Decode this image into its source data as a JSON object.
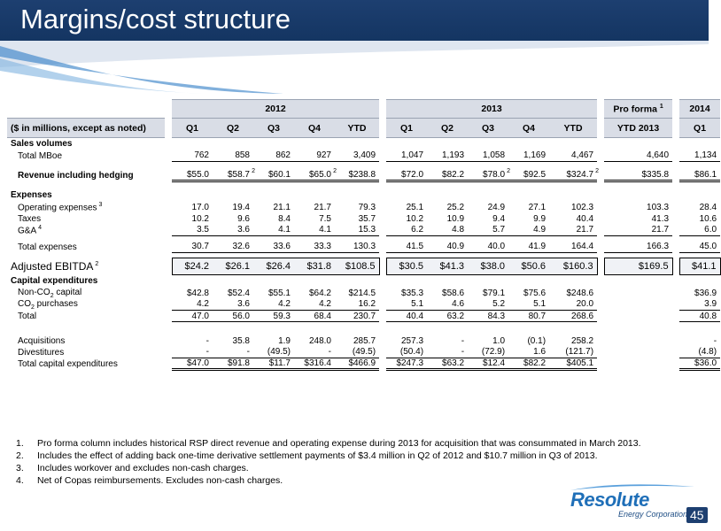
{
  "title": "Margins/cost structure",
  "headers": {
    "y2012": "2012",
    "y2013": "2013",
    "proforma": "Pro forma",
    "proforma_sup": "1",
    "y2014": "2014",
    "label": "($ in millions, except as noted)",
    "q1": "Q1",
    "q2": "Q2",
    "q3": "Q3",
    "q4": "Q4",
    "ytd": "YTD",
    "ytd2013": "YTD 2013"
  },
  "rows": {
    "sales_volumes": "Sales volumes",
    "total_mboe": {
      "label": "Total MBoe",
      "v": [
        "762",
        "858",
        "862",
        "927",
        "3,409",
        "1,047",
        "1,193",
        "1,058",
        "1,169",
        "4,467",
        "4,640",
        "1,134"
      ]
    },
    "revenue": {
      "label": "Revenue including hedging",
      "v": [
        "55.0",
        "58.7",
        "60.1",
        "65.0",
        "238.8",
        "72.0",
        "82.2",
        "78.0",
        "92.5",
        "324.7",
        "335.8",
        "86.1"
      ],
      "sup": "2"
    },
    "expenses": "Expenses",
    "opex": {
      "label": "Operating expenses",
      "sup": "3",
      "v": [
        "17.0",
        "19.4",
        "21.1",
        "21.7",
        "79.3",
        "25.1",
        "25.2",
        "24.9",
        "27.1",
        "102.3",
        "103.3",
        "28.4"
      ]
    },
    "taxes": {
      "label": "Taxes",
      "v": [
        "10.2",
        "9.6",
        "8.4",
        "7.5",
        "35.7",
        "10.2",
        "10.9",
        "9.4",
        "9.9",
        "40.4",
        "41.3",
        "10.6"
      ]
    },
    "ga": {
      "label": "G&A",
      "sup": "4",
      "v": [
        "3.5",
        "3.6",
        "4.1",
        "4.1",
        "15.3",
        "6.2",
        "4.8",
        "5.7",
        "4.9",
        "21.7",
        "21.7",
        "6.0"
      ]
    },
    "total_expenses": {
      "label": "Total expenses",
      "v": [
        "30.7",
        "32.6",
        "33.6",
        "33.3",
        "130.3",
        "41.5",
        "40.9",
        "40.0",
        "41.9",
        "164.4",
        "166.3",
        "45.0"
      ]
    },
    "ebitda": {
      "label": "Adjusted EBITDA",
      "sup": "2",
      "v": [
        "24.2",
        "26.1",
        "26.4",
        "31.8",
        "108.5",
        "30.5",
        "41.3",
        "38.0",
        "50.6",
        "160.3",
        "169.5",
        "41.1"
      ]
    },
    "capex": "Capital expenditures",
    "nonco2": {
      "label_a": "Non-CO",
      "label_sub": "2",
      "label_b": " capital",
      "v": [
        "42.8",
        "52.4",
        "55.1",
        "64.2",
        "214.5",
        "35.3",
        "58.6",
        "79.1",
        "75.6",
        "248.6",
        "",
        "36.9"
      ]
    },
    "co2": {
      "label_a": "CO",
      "label_sub": "2",
      "label_b": " purchases",
      "v": [
        "4.2",
        "3.6",
        "4.2",
        "4.2",
        "16.2",
        "5.1",
        "4.6",
        "5.2",
        "5.1",
        "20.0",
        "",
        "3.9"
      ]
    },
    "total": {
      "label": "Total",
      "v": [
        "47.0",
        "56.0",
        "59.3",
        "68.4",
        "230.7",
        "40.4",
        "63.2",
        "84.3",
        "80.7",
        "268.6",
        "",
        "40.8"
      ]
    },
    "acquisitions": {
      "label": "Acquisitions",
      "v": [
        "-",
        "35.8",
        "1.9",
        "248.0",
        "285.7",
        "257.3",
        "-",
        "1.0",
        "(0.1)",
        "258.2",
        "",
        "-"
      ]
    },
    "divestitures": {
      "label": "Divestitures",
      "v": [
        "-",
        "-",
        "(49.5)",
        "-",
        "(49.5)",
        "(50.4)",
        "-",
        "(72.9)",
        "1.6",
        "(121.7)",
        "",
        "(4.8)"
      ]
    },
    "total_capex": {
      "label": "Total capital expenditures",
      "v": [
        "47.0",
        "91.8",
        "11.7",
        "316.4",
        "466.9",
        "247.3",
        "63.2",
        "12.4",
        "82.2",
        "405.1",
        "",
        "36.0"
      ]
    }
  },
  "currency": "$",
  "notes": [
    {
      "n": "1.",
      "text": "Pro forma column includes historical RSP direct revenue and operating expense during 2013 for acquisition that was consummated in March 2013."
    },
    {
      "n": "2.",
      "text": "Includes the effect of adding back one-time derivative settlement payments of $3.4 million in Q2 of 2012 and $10.7 million in Q3 of 2013."
    },
    {
      "n": "3.",
      "text": "Includes workover and excludes non-cash charges."
    },
    {
      "n": "4.",
      "text": "Net of Copas reimbursements. Excludes non-cash charges."
    }
  ],
  "logo": {
    "name": "Resolute",
    "sub": "Energy Corporation"
  },
  "page_number": "45",
  "colors": {
    "header": "#1d3f70",
    "header_grey": "#d9dde6",
    "logo_blue": "#1f6fb8"
  }
}
